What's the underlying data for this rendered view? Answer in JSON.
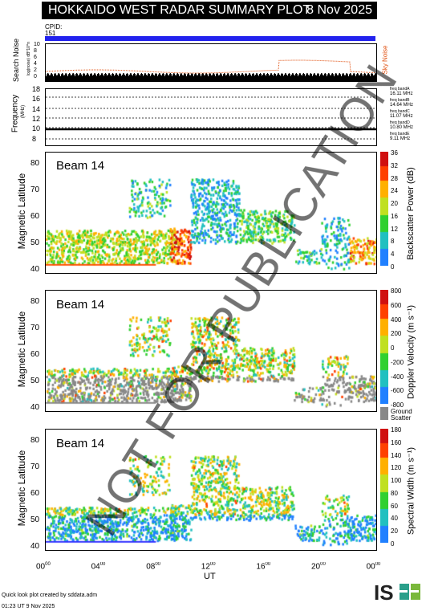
{
  "header": {
    "title": "HOKKAIDO WEST RADAR SUMMARY PLOT",
    "date": "8 Nov 2025",
    "cpid_label": "CPID:",
    "cpid_value": "151"
  },
  "noise": {
    "ylabel": "Search Noise",
    "ylabel_sub": "log(noise) dB*10^n",
    "right_label": "Sky Noise",
    "ticks": [
      "10",
      "8",
      "6",
      "4",
      "2",
      "0"
    ],
    "color": "#e05010"
  },
  "freq": {
    "ylabel": "Frequency",
    "unit": "(MHz)",
    "ticks": [
      "18",
      "16",
      "14",
      "12",
      "10",
      "8"
    ],
    "bands": [
      {
        "name": "freq bandA",
        "value": "16.11 MHz"
      },
      {
        "name": "freq bandB",
        "value": "14.64 MHz"
      },
      {
        "name": "freq bandC",
        "value": "11.07 MHz"
      },
      {
        "name": "freq bandD",
        "value": "10.80 MHz"
      },
      {
        "name": "freq bandE",
        "value": "9.11 MHz"
      }
    ]
  },
  "panels": {
    "power": {
      "beam": "Beam 14",
      "ylabel": "Magnetic Latitude",
      "cbar_label": "Backscatter Power (dB)",
      "cbar_ticks": [
        "36",
        "32",
        "28",
        "24",
        "20",
        "16",
        "12",
        "8",
        "4",
        "0"
      ]
    },
    "velocity": {
      "beam": "Beam 14",
      "ylabel": "Magnetic Latitude",
      "cbar_label": "Doppler Velocity (m s⁻¹)",
      "cbar_ticks": [
        "800",
        "600",
        "400",
        "200",
        "0",
        "-200",
        "-400",
        "-600",
        "-800"
      ],
      "ground_label_1": "Ground",
      "ground_label_2": "Scatter"
    },
    "width": {
      "beam": "Beam 14",
      "ylabel": "Magnetic Latitude",
      "cbar_label": "Spectral Width (m s⁻¹)",
      "cbar_ticks": [
        "180",
        "160",
        "140",
        "120",
        "100",
        "80",
        "60",
        "40",
        "20",
        "0"
      ]
    }
  },
  "lat_ticks": [
    "80",
    "70",
    "60",
    "50",
    "40"
  ],
  "x_axis": {
    "label": "UT",
    "ticks": [
      "00",
      "04",
      "08",
      "12",
      "16",
      "20",
      "00"
    ],
    "ticks_sup": "00"
  },
  "footer": {
    "credit": "Quick look plot created by sddata.adm",
    "stamp": "01:23 UT  9 Nov 2025",
    "logo": "ISEE"
  },
  "watermark": "NOT FOR PUBLICATION",
  "chart_data": [
    {
      "type": "heatmap",
      "title": "Beam 14",
      "quantity": "Backscatter Power",
      "unit": "dB",
      "x": "UT hours",
      "xlim": [
        0,
        24
      ],
      "ylabel": "Magnetic Latitude",
      "ylim": [
        38,
        85
      ],
      "clim": [
        0,
        36
      ],
      "regions": [
        {
          "t0": 0,
          "t1": 9.5,
          "lat0": 44,
          "lat1": 55,
          "level": "mid-high"
        },
        {
          "t0": 9,
          "t1": 10.5,
          "lat0": 42,
          "lat1": 56,
          "level": "high"
        },
        {
          "t0": 11,
          "t1": 14,
          "lat0": 55,
          "lat1": 73,
          "level": "low-mid"
        },
        {
          "t0": 14,
          "t1": 17.5,
          "lat0": 52,
          "lat1": 62,
          "level": "mid"
        },
        {
          "t0": 22,
          "t1": 24,
          "lat0": 42,
          "lat1": 52,
          "level": "high"
        }
      ]
    },
    {
      "type": "heatmap",
      "title": "Beam 14",
      "quantity": "Doppler Velocity",
      "unit": "m s^-1",
      "xlim": [
        0,
        24
      ],
      "ylim": [
        38,
        85
      ],
      "clim": [
        -800,
        800
      ]
    },
    {
      "type": "heatmap",
      "title": "Beam 14",
      "quantity": "Spectral Width",
      "unit": "m s^-1",
      "xlim": [
        0,
        24
      ],
      "ylim": [
        38,
        85
      ],
      "clim": [
        0,
        180
      ]
    }
  ]
}
